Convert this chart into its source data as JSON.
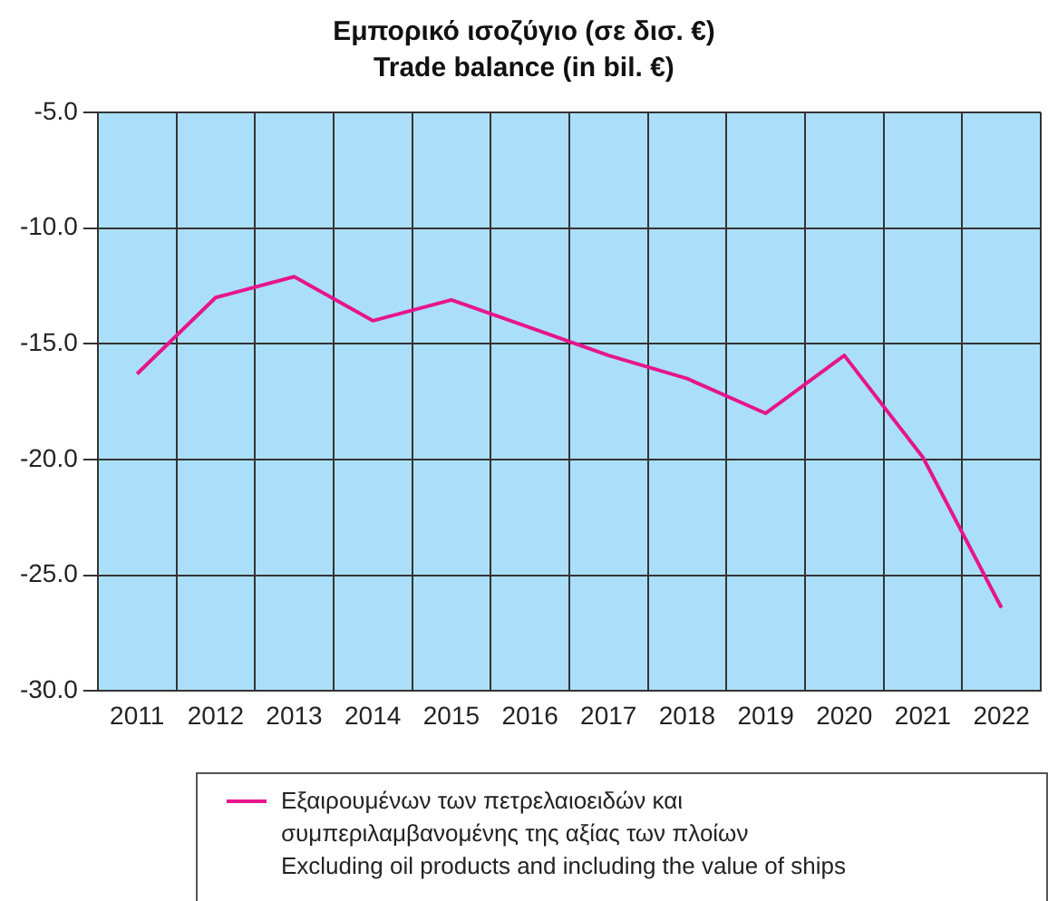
{
  "chart_data": {
    "type": "line",
    "title": "Εμπορικό ισοζύγιο (σε δισ. €)",
    "subtitle": "Trade balance (in bil. €)",
    "categories": [
      "2011",
      "2012",
      "2013",
      "2014",
      "2015",
      "2016",
      "2017",
      "2018",
      "2019",
      "2020",
      "2021",
      "2022"
    ],
    "series": [
      {
        "name": "Εξαιρουμένων των πετρελαιοειδών και\nσυμπεριλαμβανομένης της αξίας των πλοίων\nExcluding oil products and including the value of ships",
        "color": "#e6158c",
        "values": [
          -16.3,
          -13.0,
          -12.1,
          -14.0,
          -13.1,
          -14.3,
          -15.5,
          -16.5,
          -18.0,
          -15.5,
          -19.9,
          -26.4
        ]
      }
    ],
    "ylim": [
      -30,
      -5
    ],
    "yticks": [
      {
        "value": -30,
        "label": "-30.0"
      },
      {
        "value": -25,
        "label": "-25.0"
      },
      {
        "value": -20,
        "label": "-20.0"
      },
      {
        "value": -15,
        "label": "-15.0"
      },
      {
        "value": -10,
        "label": "-10.0"
      },
      {
        "value": -5,
        "label": "-5.0"
      }
    ],
    "grid": true,
    "legend": "bottom",
    "marker": "none",
    "line_style": "solid"
  }
}
